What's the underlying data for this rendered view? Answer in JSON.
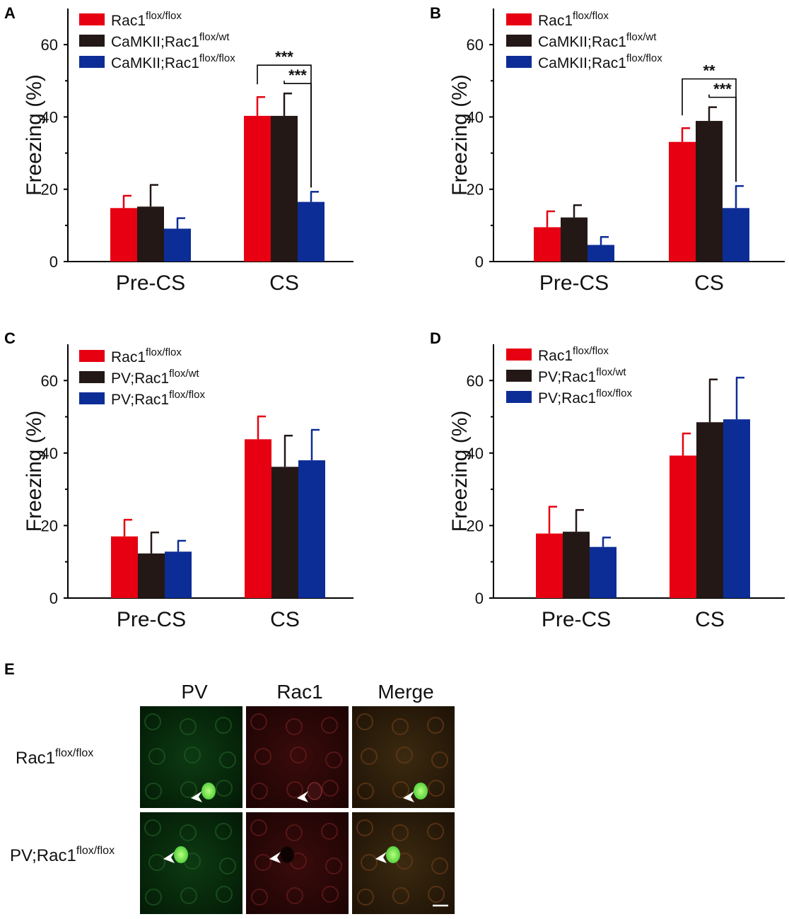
{
  "colors": {
    "red": "#e60012",
    "black": "#231816",
    "blue": "#0d2d96"
  },
  "chart_data": [
    {
      "panel": "A",
      "type": "bar",
      "ylabel": "Freezing (%)",
      "ylim": [
        0,
        70
      ],
      "yticks": [
        0,
        20,
        40,
        60
      ],
      "categories": [
        "Pre-CS",
        "CS"
      ],
      "series": [
        {
          "name_base": "Rac1",
          "name_sup": "flox/flox",
          "color_key": "red",
          "values": [
            14.8,
            40.3
          ],
          "errors": [
            3.4,
            5.2
          ]
        },
        {
          "name_base": "CaMKII;Rac1",
          "name_sup": "flox/wt",
          "color_key": "black",
          "values": [
            15.2,
            40.3
          ],
          "errors": [
            6.0,
            6.2
          ]
        },
        {
          "name_base": "CaMKII;Rac1",
          "name_sup": "flox/flox",
          "color_key": "blue",
          "values": [
            9.1,
            16.5
          ],
          "errors": [
            2.9,
            2.8
          ]
        }
      ],
      "significance": [
        {
          "category": "CS",
          "from": 0,
          "to": 2,
          "label": "***",
          "level": 2
        },
        {
          "category": "CS",
          "from": 1,
          "to": 2,
          "label": "***",
          "level": 1
        }
      ]
    },
    {
      "panel": "B",
      "type": "bar",
      "ylabel": "Freezing (%)",
      "ylim": [
        0,
        70
      ],
      "yticks": [
        0,
        20,
        40,
        60
      ],
      "categories": [
        "Pre-CS",
        "CS"
      ],
      "series": [
        {
          "name_base": "Rac1",
          "name_sup": "flox/flox",
          "color_key": "red",
          "values": [
            9.5,
            33.1
          ],
          "errors": [
            4.4,
            3.8
          ]
        },
        {
          "name_base": "CaMKII;Rac1",
          "name_sup": "flox/wt",
          "color_key": "black",
          "values": [
            12.2,
            38.9
          ],
          "errors": [
            3.4,
            3.8
          ]
        },
        {
          "name_base": "CaMKII;Rac1",
          "name_sup": "flox/flox",
          "color_key": "blue",
          "values": [
            4.6,
            14.8
          ],
          "errors": [
            2.2,
            6.1
          ]
        }
      ],
      "significance": [
        {
          "category": "CS",
          "from": 0,
          "to": 2,
          "label": "**",
          "level": 2
        },
        {
          "category": "CS",
          "from": 1,
          "to": 2,
          "label": "***",
          "level": 1
        }
      ]
    },
    {
      "panel": "C",
      "type": "bar",
      "ylabel": "Freezing (%)",
      "ylim": [
        0,
        70
      ],
      "yticks": [
        0,
        20,
        40,
        60
      ],
      "categories": [
        "Pre-CS",
        "CS"
      ],
      "series": [
        {
          "name_base": "Rac1",
          "name_sup": "flox/flox",
          "color_key": "red",
          "values": [
            17.0,
            43.8
          ],
          "errors": [
            4.6,
            6.3
          ]
        },
        {
          "name_base": "PV;Rac1",
          "name_sup": "flox/wt",
          "color_key": "black",
          "values": [
            12.3,
            36.2
          ],
          "errors": [
            5.8,
            8.6
          ]
        },
        {
          "name_base": "PV;Rac1",
          "name_sup": "flox/flox",
          "color_key": "blue",
          "values": [
            12.8,
            38.0
          ],
          "errors": [
            3.0,
            8.4
          ]
        }
      ],
      "significance": []
    },
    {
      "panel": "D",
      "type": "bar",
      "ylabel": "Freezing (%)",
      "ylim": [
        0,
        70
      ],
      "yticks": [
        0,
        20,
        40,
        60
      ],
      "categories": [
        "Pre-CS",
        "CS"
      ],
      "series": [
        {
          "name_base": "Rac1",
          "name_sup": "flox/flox",
          "color_key": "red",
          "values": [
            17.8,
            39.3
          ],
          "errors": [
            7.4,
            6.1
          ]
        },
        {
          "name_base": "PV;Rac1",
          "name_sup": "flox/wt",
          "color_key": "black",
          "values": [
            18.3,
            48.5
          ],
          "errors": [
            6.0,
            11.8
          ]
        },
        {
          "name_base": "PV;Rac1",
          "name_sup": "flox/flox",
          "color_key": "blue",
          "values": [
            14.1,
            49.3
          ],
          "errors": [
            2.6,
            11.5
          ]
        }
      ],
      "significance": []
    }
  ],
  "panel_e": {
    "letter": "E",
    "columns": [
      "PV",
      "Rac1",
      "Merge"
    ],
    "rows": [
      {
        "label_base": "Rac1",
        "label_sup": "flox/flox"
      },
      {
        "label_base": "PV;Rac1",
        "label_sup": "flox/flox"
      }
    ]
  }
}
